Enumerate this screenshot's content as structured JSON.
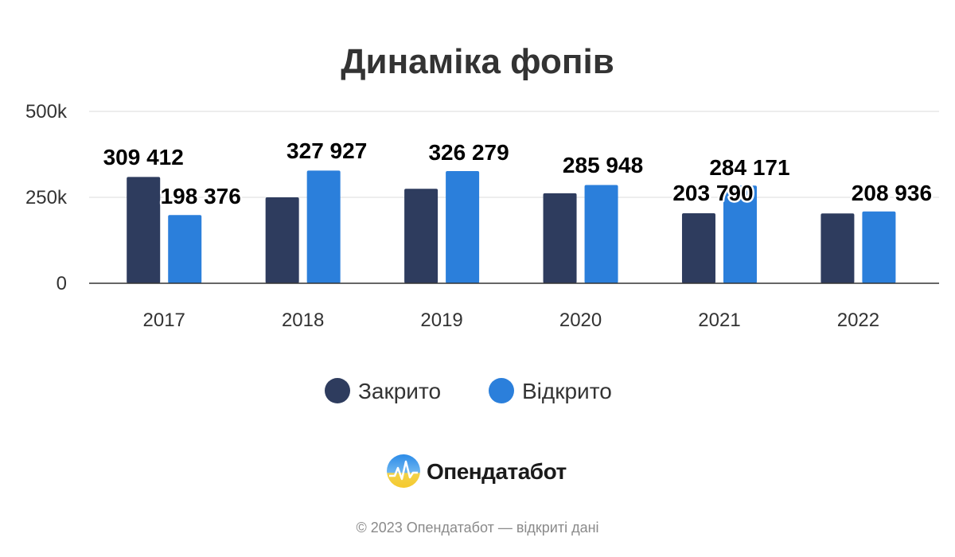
{
  "chart_data": {
    "type": "bar",
    "title": "Динаміка фопів",
    "categories": [
      "2017",
      "2018",
      "2019",
      "2020",
      "2021",
      "2022"
    ],
    "series": [
      {
        "name": "Закрито",
        "color": "#2e3c5e",
        "values": [
          309412,
          250000,
          275000,
          262000,
          203790,
          203000
        ],
        "labels": [
          "309 412",
          "",
          "",
          "",
          "203 790",
          ""
        ]
      },
      {
        "name": "Відкрито",
        "color": "#2b7fdb",
        "values": [
          198376,
          327927,
          326279,
          285948,
          284171,
          208936
        ],
        "labels": [
          "198 376",
          "327 927",
          "326 279",
          "285 948",
          "284 171",
          "208 936"
        ]
      }
    ],
    "ylim": [
      0,
      500000
    ],
    "yticks": [
      0,
      250000,
      500000
    ],
    "ytick_labels": [
      "0",
      "250k",
      "500k"
    ],
    "grid": true,
    "legend": "bottom-center"
  },
  "branding": {
    "logo_text": "Опендатабот",
    "footer": "© 2023 Опендатабот — відкриті дані"
  }
}
